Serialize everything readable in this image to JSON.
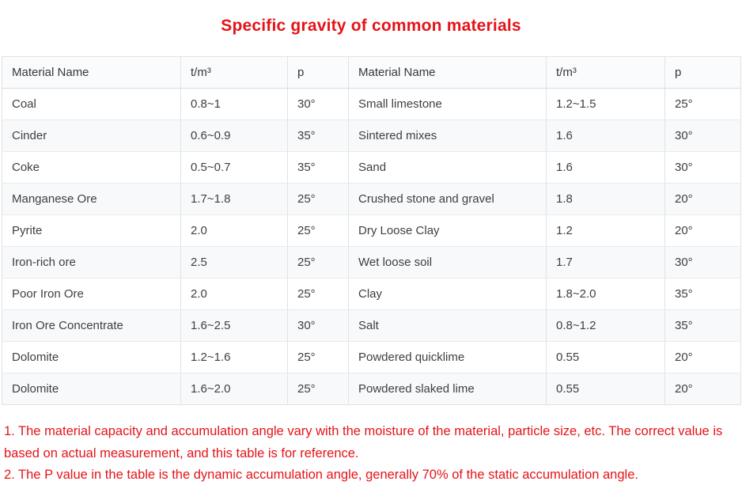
{
  "title": "Specific gravity of common materials",
  "table": {
    "headers": [
      "Material Name",
      "t/m³",
      "p",
      "Material Name",
      "t/m³",
      "p"
    ],
    "rows": [
      [
        "Coal",
        "0.8~1",
        "30°",
        "Small limestone",
        "1.2~1.5",
        "25°"
      ],
      [
        "Cinder",
        "0.6~0.9",
        "35°",
        "Sintered mixes",
        "1.6",
        "30°"
      ],
      [
        "Coke",
        "0.5~0.7",
        "35°",
        "Sand",
        "1.6",
        "30°"
      ],
      [
        "Manganese Ore",
        "1.7~1.8",
        "25°",
        "Crushed stone and gravel",
        "1.8",
        "20°"
      ],
      [
        "Pyrite",
        "2.0",
        "25°",
        "Dry Loose Clay",
        "1.2",
        "20°"
      ],
      [
        "Iron-rich ore",
        "2.5",
        "25°",
        "Wet loose soil",
        "1.7",
        "30°"
      ],
      [
        "Poor Iron Ore",
        "2.0",
        "25°",
        "Clay",
        "1.8~2.0",
        "35°"
      ],
      [
        "Iron Ore Concentrate",
        "1.6~2.5",
        "30°",
        "Salt",
        "0.8~1.2",
        "35°"
      ],
      [
        "Dolomite",
        "1.2~1.6",
        "25°",
        "Powdered quicklime",
        "0.55",
        "20°"
      ],
      [
        "Dolomite",
        "1.6~2.0",
        "25°",
        "Powdered slaked lime",
        "0.55",
        "20°"
      ]
    ]
  },
  "notes": [
    "1. The material capacity and accumulation angle vary with the moisture of the material, particle size, etc. The correct value is based on actual measurement, and this table is for reference.",
    "2. The P value in the table is the dynamic accumulation angle, generally 70% of the static accumulation angle."
  ],
  "colors": {
    "accent_red": "#e51318",
    "header_bg": "#fafbfc",
    "row_alt_bg": "#f8f9fa",
    "border": "#e0e2e5",
    "cell_text": "#3f3f3f"
  }
}
